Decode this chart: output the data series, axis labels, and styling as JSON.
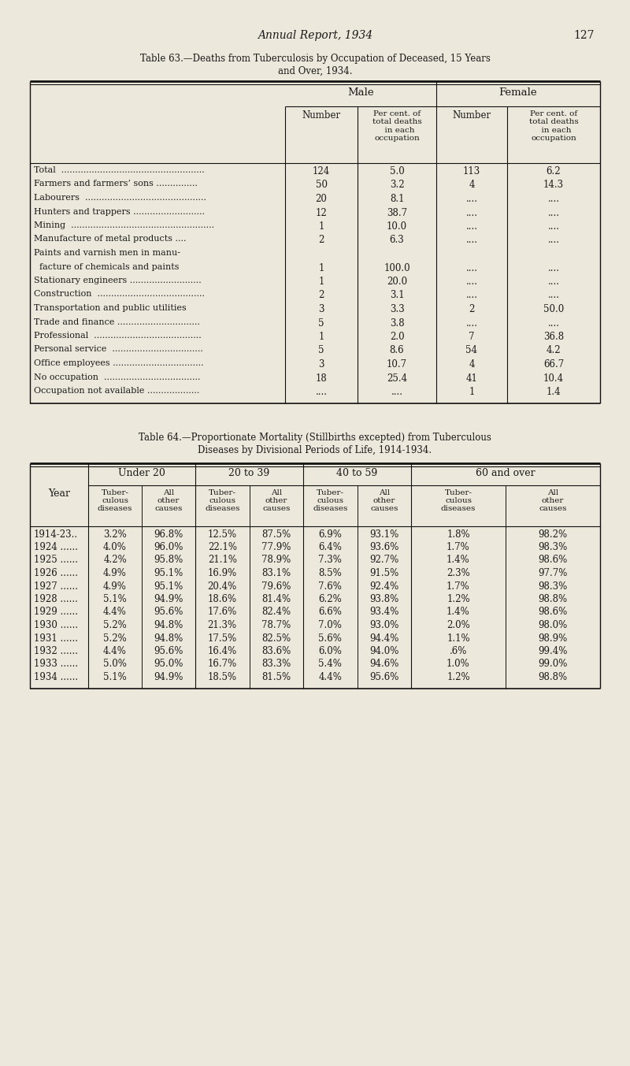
{
  "bg_color": "#ede8dc",
  "text_color": "#1a1a1a",
  "page_header": "Annual Report, 1934",
  "page_number": "127",
  "table63_title_line1": "Table 63.—Deaths from Tuberculosis by Occupation of Deceased, 15 Years",
  "table63_title_line2": "and Over, 1934.",
  "table63_rows": [
    [
      "Total  ....................................................",
      "124",
      "5.0",
      "113",
      "6.2"
    ],
    [
      "Farmers and farmers’ sons ...............",
      "50",
      "3.2",
      "4",
      "14.3"
    ],
    [
      "Labourers  ............................................",
      "20",
      "8.1",
      "....",
      "...."
    ],
    [
      "Hunters and trappers ..........................",
      "12",
      "38.7",
      "....",
      "...."
    ],
    [
      "Mining  ....................................................",
      "1",
      "10.0",
      "....",
      "...."
    ],
    [
      "Manufacture of metal products ....",
      "2",
      "6.3",
      "....",
      "...."
    ],
    [
      "Paints and varnish men in manu-",
      "",
      "",
      "",
      ""
    ],
    [
      "  facture of chemicals and paints",
      "1",
      "100.0",
      "....",
      "...."
    ],
    [
      "Stationary engineers ..........................",
      "1",
      "20.0",
      "....",
      "...."
    ],
    [
      "Construction  .......................................",
      "2",
      "3.1",
      "....",
      "...."
    ],
    [
      "Transportation and public utilities",
      "3",
      "3.3",
      "2",
      "50.0"
    ],
    [
      "Trade and finance ..............................",
      "5",
      "3.8",
      "....",
      "...."
    ],
    [
      "Professional  .......................................",
      "1",
      "2.0",
      "7",
      "36.8"
    ],
    [
      "Personal service  .................................",
      "5",
      "8.6",
      "54",
      "4.2"
    ],
    [
      "Office employees .................................",
      "3",
      "10.7",
      "4",
      "66.7"
    ],
    [
      "No occupation  ...................................",
      "18",
      "25.4",
      "41",
      "10.4"
    ],
    [
      "Occupation not available ...................",
      "....",
      "....",
      "1",
      "1.4"
    ]
  ],
  "table64_title_line1": "Table 64.—Proportionate Mortality (Stillbirths excepted) from Tuberculous",
  "table64_title_line2": "Diseases by Divisional Periods of Life, 1914-1934.",
  "table64_age_groups": [
    "Under 20",
    "20 to 39",
    "40 to 59",
    "60 and over"
  ],
  "table64_rows": [
    [
      "1914-23..",
      "3.2%",
      "96.8%",
      "12.5%",
      "87.5%",
      "6.9%",
      "93.1%",
      "1.8%",
      "98.2%"
    ],
    [
      "1924 ......",
      "4.0%",
      "96.0%",
      "22.1%",
      "77.9%",
      "6.4%",
      "93.6%",
      "1.7%",
      "98.3%"
    ],
    [
      "1925 ......",
      "4.2%",
      "95.8%",
      "21.1%",
      "78.9%",
      "7.3%",
      "92.7%",
      "1.4%",
      "98.6%"
    ],
    [
      "1926 ......",
      "4.9%",
      "95.1%",
      "16.9%",
      "83.1%",
      "8.5%",
      "91.5%",
      "2.3%",
      "97.7%"
    ],
    [
      "1927 ......",
      "4.9%",
      "95.1%",
      "20.4%",
      "79.6%",
      "7.6%",
      "92.4%",
      "1.7%",
      "98.3%"
    ],
    [
      "1928 ......",
      "5.1%",
      "94.9%",
      "18.6%",
      "81.4%",
      "6.2%",
      "93.8%",
      "1.2%",
      "98.8%"
    ],
    [
      "1929 ......",
      "4.4%",
      "95.6%",
      "17.6%",
      "82.4%",
      "6.6%",
      "93.4%",
      "1.4%",
      "98.6%"
    ],
    [
      "1930 ......",
      "5.2%",
      "94.8%",
      "21.3%",
      "78.7%",
      "7.0%",
      "93.0%",
      "2.0%",
      "98.0%"
    ],
    [
      "1931 ......",
      "5.2%",
      "94.8%",
      "17.5%",
      "82.5%",
      "5.6%",
      "94.4%",
      "1.1%",
      "98.9%"
    ],
    [
      "1932 ......",
      "4.4%",
      "95.6%",
      "16.4%",
      "83.6%",
      "6.0%",
      "94.0%",
      ".6%",
      "99.4%"
    ],
    [
      "1933 ......",
      "5.0%",
      "95.0%",
      "16.7%",
      "83.3%",
      "5.4%",
      "94.6%",
      "1.0%",
      "99.0%"
    ],
    [
      "1934 ......",
      "5.1%",
      "94.9%",
      "18.5%",
      "81.5%",
      "4.4%",
      "95.6%",
      "1.2%",
      "98.8%"
    ]
  ]
}
